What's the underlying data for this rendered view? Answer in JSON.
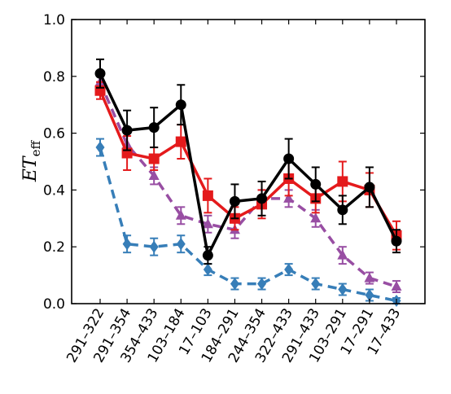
{
  "chart_data": {
    "type": "line",
    "ylabel": {
      "main": "ET",
      "sub": "eff"
    },
    "ylim": [
      0.0,
      1.0
    ],
    "yticks": [
      0.0,
      0.2,
      0.4,
      0.6,
      0.8,
      1.0
    ],
    "ytick_labels": [
      "0.0",
      "0.2",
      "0.4",
      "0.6",
      "0.8",
      "1.0"
    ],
    "categories": [
      "291–322",
      "291–354",
      "354–433",
      "103–184",
      "17–103",
      "184–291",
      "244–354",
      "322–433",
      "291–433",
      "103–291",
      "17–291",
      "17–433"
    ],
    "grid": false,
    "series": [
      {
        "color": "#000000",
        "line_style": "solid",
        "marker": "circle",
        "values": [
          0.81,
          0.61,
          0.62,
          0.7,
          0.17,
          0.36,
          0.37,
          0.51,
          0.42,
          0.33,
          0.41,
          0.22
        ],
        "errors": [
          0.05,
          0.07,
          0.07,
          0.07,
          0.03,
          0.06,
          0.06,
          0.07,
          0.06,
          0.05,
          0.07,
          0.04
        ]
      },
      {
        "color": "#e41a1c",
        "line_style": "solid",
        "marker": "square",
        "values": [
          0.75,
          0.53,
          0.51,
          0.57,
          0.38,
          0.3,
          0.35,
          0.44,
          0.37,
          0.43,
          0.4,
          0.24
        ],
        "errors": [
          0.03,
          0.06,
          0.04,
          0.06,
          0.06,
          0.04,
          0.05,
          0.06,
          0.05,
          0.07,
          0.06,
          0.05
        ]
      },
      {
        "color": "#984ea3",
        "line_style": "dashed",
        "marker": "triangle",
        "values": [
          0.78,
          0.56,
          0.45,
          0.31,
          0.28,
          0.26,
          0.37,
          0.37,
          0.3,
          0.17,
          0.09,
          0.06
        ],
        "errors": [
          0.03,
          0.04,
          0.03,
          0.03,
          0.03,
          0.03,
          0.03,
          0.03,
          0.03,
          0.03,
          0.02,
          0.02
        ]
      },
      {
        "color": "#377eb8",
        "line_style": "dashed",
        "marker": "diamond",
        "values": [
          0.55,
          0.21,
          0.2,
          0.21,
          0.12,
          0.07,
          0.07,
          0.12,
          0.07,
          0.05,
          0.03,
          0.01
        ],
        "errors": [
          0.03,
          0.03,
          0.03,
          0.03,
          0.02,
          0.02,
          0.02,
          0.02,
          0.02,
          0.02,
          0.02,
          0.01
        ]
      }
    ]
  }
}
